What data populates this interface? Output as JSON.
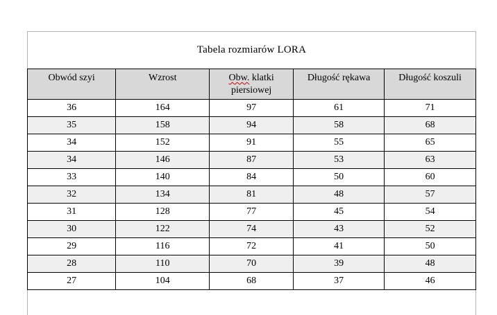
{
  "document": {
    "title": "Tabela rozmiarów LORA"
  },
  "table": {
    "headers": [
      {
        "wavy": "",
        "text": "Obwód szyi"
      },
      {
        "wavy": "",
        "text": "Wzrost"
      },
      {
        "wavy": "Obw.",
        "text": " klatki piersiowej"
      },
      {
        "wavy": "",
        "text": "Długość rękawa"
      },
      {
        "wavy": "",
        "text": "Długość koszuli"
      }
    ],
    "rows": [
      [
        "36",
        "164",
        "97",
        "61",
        "71"
      ],
      [
        "35",
        "158",
        "94",
        "58",
        "68"
      ],
      [
        "34",
        "152",
        "91",
        "55",
        "65"
      ],
      [
        "34",
        "146",
        "87",
        "53",
        "63"
      ],
      [
        "33",
        "140",
        "84",
        "50",
        "60"
      ],
      [
        "32",
        "134",
        "81",
        "48",
        "57"
      ],
      [
        "31",
        "128",
        "77",
        "45",
        "54"
      ],
      [
        "30",
        "122",
        "74",
        "43",
        "52"
      ],
      [
        "29",
        "116",
        "72",
        "41",
        "50"
      ],
      [
        "28",
        "110",
        "70",
        "39",
        "48"
      ],
      [
        "27",
        "104",
        "68",
        "37",
        "46"
      ]
    ]
  },
  "colors": {
    "header_bg": "#d8d8d8",
    "alt_row_bg": "#efefef",
    "table_border": "#000000",
    "frame_border": "#b3b3b3",
    "spellcheck_squiggle": "#cc0000",
    "page_bg": "#ffffff"
  }
}
